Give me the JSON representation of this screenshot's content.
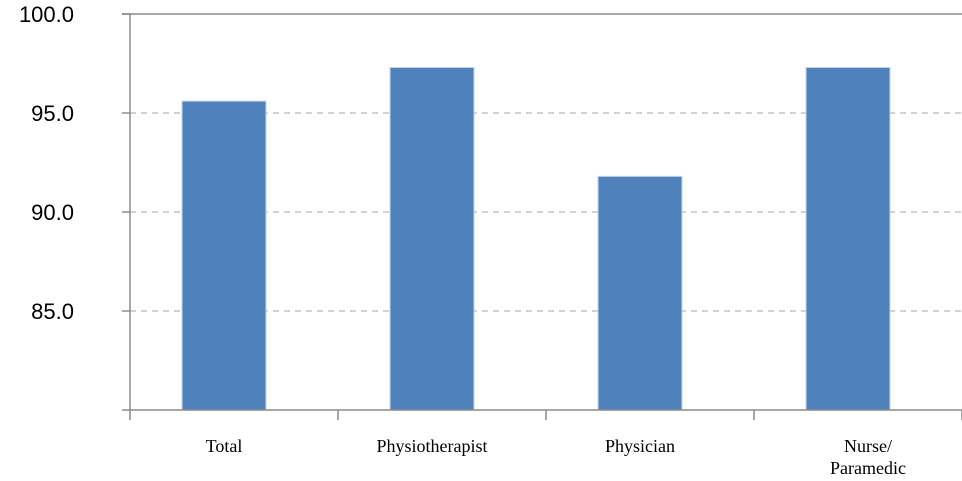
{
  "chart_data": {
    "type": "bar",
    "title": "",
    "xlabel": "",
    "ylabel": "",
    "categories": [
      [
        "Total"
      ],
      [
        "Physiotherapist"
      ],
      [
        "Physician"
      ],
      [
        "Nurse/",
        "Paramedic"
      ]
    ],
    "values": [
      95.6,
      97.3,
      91.8,
      97.3
    ],
    "ylim": [
      80.0,
      100.0
    ],
    "yticks": [
      "100.0",
      "95.0",
      "90.0",
      "85.0"
    ],
    "grid": true,
    "legend": "none",
    "bar_color": "#4f81bd",
    "grid_color": "#b7b7b7",
    "axis_color": "#8c8c8c"
  }
}
